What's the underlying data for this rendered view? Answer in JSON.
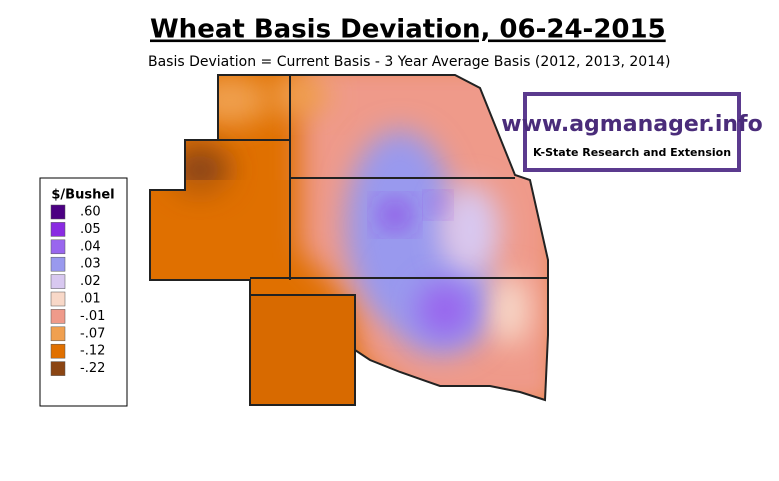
{
  "header": {
    "title": "Wheat Basis Deviation, 06-24-2015",
    "subtitle": "Basis Deviation = Current Basis - 3 Year Average Basis (2012, 2013, 2014)"
  },
  "logo": {
    "url": "www.agmanager.info",
    "org": "K-State Research and Extension"
  },
  "legend": {
    "title": "$/Bushel",
    "items": [
      {
        "label": ".60",
        "color": "#4b0082"
      },
      {
        "label": ".05",
        "color": "#8a2be2"
      },
      {
        "label": ".04",
        "color": "#9966ee"
      },
      {
        "label": ".03",
        "color": "#9999ee"
      },
      {
        "label": ".02",
        "color": "#d8c8f0"
      },
      {
        "label": ".01",
        "color": "#f8d8c8"
      },
      {
        "label": "-.01",
        "color": "#ef9a8a"
      },
      {
        "label": "-.07",
        "color": "#f0a050"
      },
      {
        "label": "-.12",
        "color": "#e07000"
      },
      {
        "label": "-.22",
        "color": "#8b4513"
      }
    ]
  }
}
